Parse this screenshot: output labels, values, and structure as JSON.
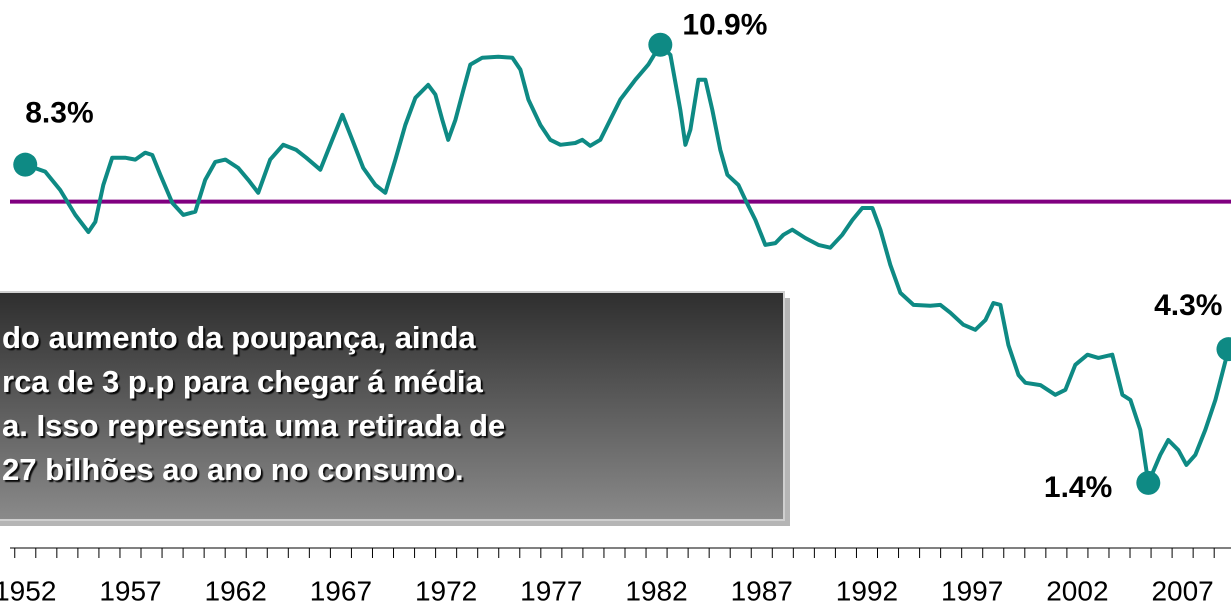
{
  "chart_data": {
    "type": "line",
    "x": [
      1952.0,
      1952.95,
      1953.66,
      1954.38,
      1955.0,
      1955.33,
      1955.71,
      1956.13,
      1956.75,
      1957.23,
      1957.7,
      1958.04,
      1958.42,
      1958.99,
      1959.51,
      1960.08,
      1960.55,
      1961.03,
      1961.51,
      1962.12,
      1962.6,
      1963.07,
      1963.64,
      1964.26,
      1964.88,
      1965.35,
      1966.02,
      1966.59,
      1967.07,
      1967.54,
      1968.06,
      1968.64,
      1969.11,
      1969.59,
      1970.06,
      1970.54,
      1971.15,
      1971.49,
      1971.82,
      1972.1,
      1972.44,
      1972.82,
      1973.15,
      1973.72,
      1974.48,
      1975.15,
      1975.53,
      1975.91,
      1976.48,
      1976.95,
      1977.43,
      1978.14,
      1978.47,
      1978.85,
      1979.33,
      1979.8,
      1980.28,
      1980.99,
      1981.61,
      1982.18,
      1982.66,
      1983.13,
      1983.37,
      1983.61,
      1983.99,
      1984.32,
      1984.65,
      1985.03,
      1985.37,
      1985.89,
      1986.22,
      1986.7,
      1987.17,
      1987.65,
      1988.03,
      1988.45,
      1989.07,
      1989.69,
      1990.26,
      1990.83,
      1991.31,
      1991.78,
      1992.26,
      1992.64,
      1993.11,
      1993.59,
      1994.21,
      1995.01,
      1995.49,
      1995.96,
      1996.58,
      1997.15,
      1997.63,
      1998.01,
      1998.34,
      1998.72,
      1999.2,
      1999.53,
      2000.24,
      2000.95,
      2001.43,
      2001.9,
      2002.48,
      2003.0,
      2003.66,
      2004.14,
      2004.52,
      2004.99,
      2005.37,
      2005.94,
      2006.32,
      2006.8,
      2007.18,
      2007.61,
      2008.08,
      2008.56,
      2009.18
    ],
    "series": [
      {
        "color": "#0e8a84",
        "values": [
          8.3,
          8.15,
          7.75,
          7.21,
          6.84,
          7.06,
          7.86,
          8.45,
          8.45,
          8.41,
          8.56,
          8.51,
          8.08,
          7.47,
          7.21,
          7.28,
          7.97,
          8.36,
          8.41,
          8.23,
          7.97,
          7.69,
          8.41,
          8.73,
          8.62,
          8.45,
          8.19,
          8.84,
          9.38,
          8.84,
          8.23,
          7.86,
          7.69,
          8.41,
          9.16,
          9.75,
          10.03,
          9.82,
          9.27,
          8.84,
          9.27,
          9.92,
          10.47,
          10.62,
          10.64,
          10.62,
          10.36,
          9.71,
          9.16,
          8.84,
          8.73,
          8.77,
          8.84,
          8.71,
          8.84,
          9.27,
          9.71,
          10.14,
          10.47,
          10.9,
          10.68,
          9.49,
          8.73,
          9.06,
          10.14,
          10.14,
          9.49,
          8.62,
          8.08,
          7.86,
          7.54,
          7.1,
          6.56,
          6.6,
          6.78,
          6.89,
          6.71,
          6.56,
          6.5,
          6.78,
          7.1,
          7.36,
          7.36,
          6.89,
          6.13,
          5.52,
          5.26,
          5.24,
          5.26,
          5.09,
          4.83,
          4.72,
          4.93,
          5.3,
          5.26,
          4.39,
          3.74,
          3.57,
          3.52,
          3.31,
          3.42,
          3.96,
          4.18,
          4.11,
          4.18,
          3.31,
          3.2,
          2.55,
          1.4,
          2.01,
          2.33,
          2.11,
          1.79,
          2.01,
          2.55,
          3.2,
          4.3
        ],
        "value_labels": [
          "8.3%",
          null,
          null,
          null,
          null,
          null,
          null,
          null,
          null,
          null,
          null,
          null,
          null,
          null,
          null,
          null,
          null,
          null,
          null,
          null,
          null,
          null,
          null,
          null,
          null,
          null,
          null,
          null,
          null,
          null,
          null,
          null,
          null,
          null,
          null,
          null,
          null,
          null,
          null,
          null,
          null,
          null,
          null,
          null,
          null,
          null,
          null,
          null,
          null,
          null,
          null,
          null,
          null,
          null,
          null,
          null,
          null,
          null,
          null,
          "10.9%",
          null,
          null,
          null,
          null,
          null,
          null,
          null,
          null,
          null,
          null,
          null,
          null,
          null,
          null,
          null,
          null,
          null,
          null,
          null,
          null,
          null,
          null,
          null,
          null,
          null,
          null,
          null,
          null,
          null,
          null,
          null,
          null,
          null,
          null,
          null,
          null,
          null,
          null,
          null,
          null,
          null,
          null,
          null,
          null,
          null,
          null,
          null,
          null,
          "1.4%",
          null,
          null,
          null,
          null,
          null,
          null,
          null,
          "4.3%"
        ]
      }
    ],
    "reference_line": {
      "value": 7.5,
      "color": "#800080"
    },
    "xlim": [
      1950.8,
      2009.3
    ],
    "xticks": [
      1952,
      1957,
      1962,
      1967,
      1972,
      1977,
      1982,
      1987,
      1992,
      1997,
      2002,
      2007
    ],
    "minor_xticks": [
      1952,
      1953,
      1954,
      1955,
      1956,
      1957,
      1958,
      1959,
      1960,
      1961,
      1962,
      1963,
      1964,
      1965,
      1966,
      1967,
      1968,
      1969,
      1970,
      1971,
      1972,
      1973,
      1974,
      1975,
      1976,
      1977,
      1978,
      1979,
      1980,
      1981,
      1982,
      1983,
      1984,
      1985,
      1986,
      1987,
      1988,
      1989,
      1990,
      1991,
      1992,
      1993,
      1994,
      1995,
      1996,
      1997,
      1998,
      1999,
      2000,
      2001,
      2002,
      2003,
      2004,
      2005,
      2006,
      2007,
      2008,
      2009
    ],
    "ylim": [
      0,
      12
    ],
    "annotation": [
      "do aumento da poupança, ainda",
      "rca de 3 p.p para chegar á média",
      "a. Isso representa uma retirada de",
      "27 bilhões ao ano no consumo."
    ]
  }
}
